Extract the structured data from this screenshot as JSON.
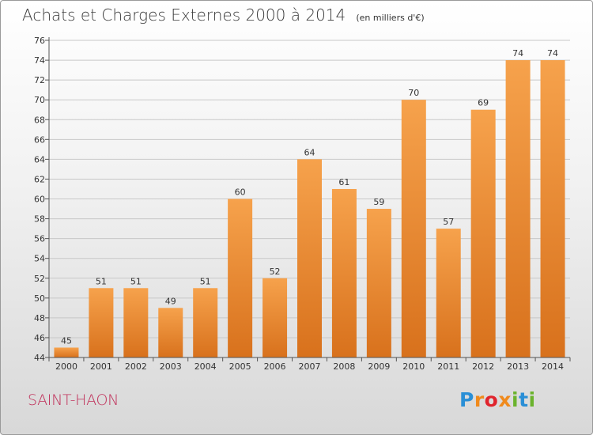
{
  "header": {
    "title": "Achats et Charges Externes 2000 à 2014",
    "subtitle": "(en milliers d'€)"
  },
  "footer": {
    "commune": "SAINT-HAON",
    "brand": "Proxiti",
    "brand_colors": [
      "#2a8fd6",
      "#f08a1c",
      "#e0242d",
      "#f08a1c",
      "#6bb32e",
      "#2a8fd6",
      "#6bb32e"
    ]
  },
  "colors": {
    "bar_top": "#f6a24c",
    "bar_bottom": "#d8711c",
    "grid": "#c8c8c8",
    "axis": "#555555",
    "title": "#3a3a3a",
    "commune": "#c0305a"
  },
  "chart_data": {
    "type": "bar",
    "title": "Achats et Charges Externes 2000 à 2014",
    "subtitle": "(en milliers d'€)",
    "xlabel": "",
    "ylabel": "",
    "ylim": [
      44,
      76
    ],
    "ytick_step": 2,
    "grid": true,
    "categories": [
      "2000",
      "2001",
      "2002",
      "2003",
      "2004",
      "2005",
      "2006",
      "2007",
      "2008",
      "2009",
      "2010",
      "2011",
      "2012",
      "2013",
      "2014"
    ],
    "values": [
      45,
      51,
      51,
      49,
      51,
      60,
      52,
      64,
      61,
      59,
      70,
      57,
      69,
      74,
      74
    ]
  }
}
